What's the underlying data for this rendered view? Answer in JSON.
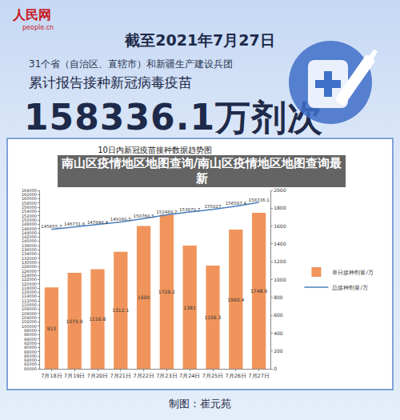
{
  "header": {
    "logo": "人民网",
    "logo_sub": "people.cn",
    "date": "截至2021年7月27日",
    "scope": "31个省（自治区、直辖市）和新疆生产建设兵团",
    "subtitle": "累计报告接种新冠病毒疫苗",
    "total": "158336.1万剂次"
  },
  "overlay": "南山区疫情地区地图查询/南山区疫情地区地图查询最新",
  "footer": "制图：崔元苑",
  "chart_data": {
    "type": "bar",
    "title": "10日内新冠疫苗接种数据趋势图",
    "categories": [
      "7月18日",
      "7月19日",
      "7月20日",
      "7月21日",
      "7月22日",
      "7月23日",
      "7月24日",
      "7月25日",
      "7月26日",
      "7月27日"
    ],
    "series": [
      {
        "name": "单日接种剂量/万",
        "type": "bar",
        "color": "#f0945c",
        "axis": "y2",
        "values": [
          913,
          1075.9,
          1116.8,
          1312.1,
          1600,
          1729.2,
          1381,
          1156.3,
          1560.4,
          1748.9
        ]
      },
      {
        "name": "总接种剂量/万",
        "type": "line",
        "color": "#4a7fc1",
        "values": [
          145655.7,
          146731.6,
          147848.4,
          149160.5,
          150760.5,
          152489.7,
          153870.7,
          155027,
          156587.4,
          158336.1
        ]
      }
    ],
    "ylim": [
      80000,
      164000
    ],
    "yticks": [
      80000,
      82000,
      84000,
      86000,
      88000,
      90000,
      92000,
      94000,
      96000,
      98000,
      100000,
      102000,
      104000,
      106000,
      108000,
      110000,
      112000,
      114000,
      116000,
      118000,
      120000,
      122000,
      124000,
      126000,
      128000,
      130000,
      132000,
      134000,
      136000,
      138000,
      140000,
      142000,
      144000,
      146000,
      148000,
      150000,
      152000,
      154000,
      156000,
      158000,
      160000,
      162000,
      164000
    ],
    "y2lim": [
      0,
      2000
    ],
    "y2ticks": [
      0,
      200,
      400,
      600,
      800,
      1000,
      1200,
      1400,
      1600,
      1800,
      2000
    ],
    "data_labels": true,
    "legend": "right",
    "grid": false
  }
}
